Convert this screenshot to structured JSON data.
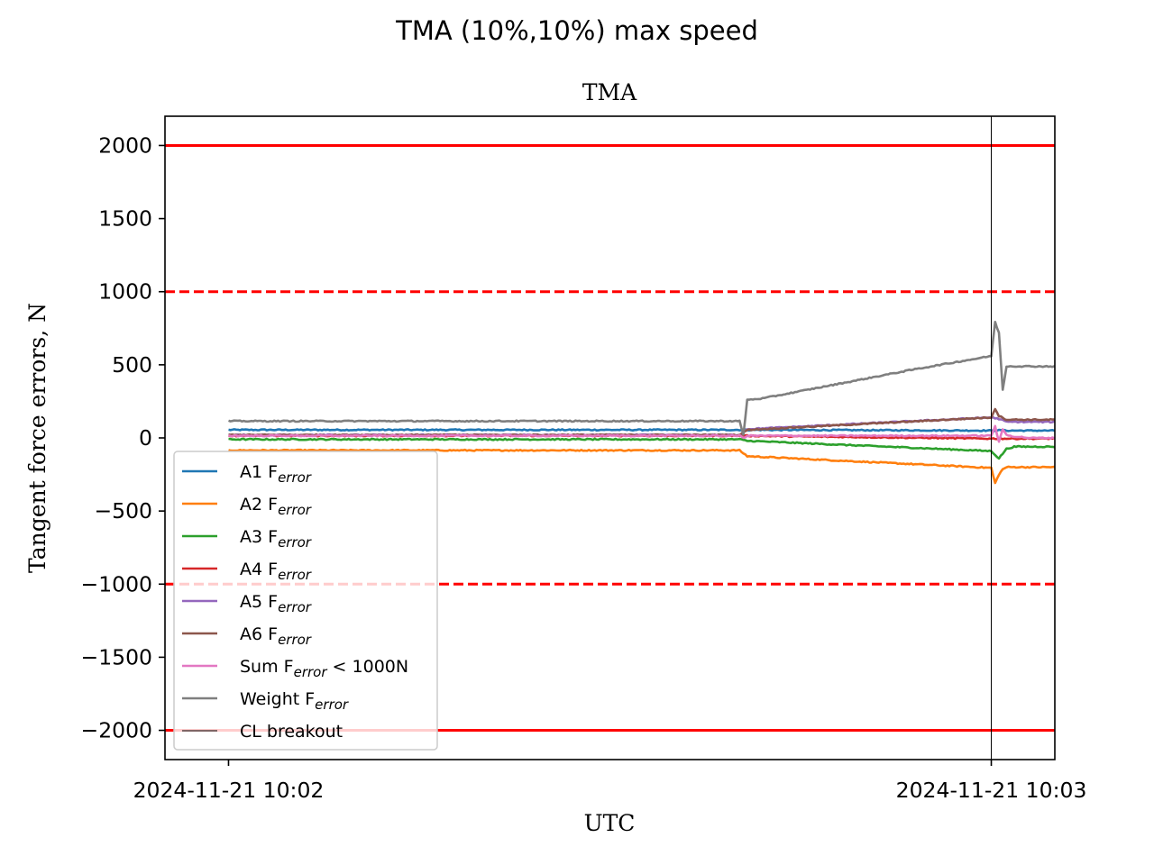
{
  "figure": {
    "suptitle": "TMA (10%,10%) max speed"
  },
  "chart_data": {
    "type": "line",
    "title": "TMA",
    "xlabel": "UTC",
    "ylabel": "Tangent force errors, N",
    "ylim": [
      -2200,
      2200
    ],
    "xlim": [
      -0.0833,
      1.0833
    ],
    "x_unit": "minutes since 2024-11-21 10:02",
    "yticks": [
      2000,
      1500,
      1000,
      500,
      0,
      -500,
      -1000,
      -1500,
      -2000
    ],
    "ytick_labels": [
      "2000",
      "1500",
      "1000",
      "500",
      "0",
      "−500",
      "−1000",
      "−1500",
      "−2000"
    ],
    "xticks": [
      0.0,
      1.0,
      1.3867
    ],
    "xtick_labels": [
      "2024-11-21 10:02",
      "2024-11-21 10:03",
      "2024-11-21 10:03"
    ],
    "grid": false,
    "legend_position": "lower-left",
    "colors": {
      "A1": "#1f77b4",
      "A2": "#ff7f0e",
      "A3": "#2ca02c",
      "A4": "#d62728",
      "A5": "#9467bd",
      "A6": "#8c564b",
      "Sum": "#e377c2",
      "Weight": "#7f7f7f",
      "limit": "#ff0000",
      "breakout": "#000000"
    },
    "limits": [
      {
        "y": 2000,
        "style": "solid"
      },
      {
        "y": -2000,
        "style": "solid"
      },
      {
        "y": 1000,
        "style": "dashed"
      },
      {
        "y": -1000,
        "style": "dashed"
      }
    ],
    "breakout_x": 1.0,
    "series": [
      {
        "name": "A1",
        "color": "#1f77b4",
        "points": [
          [
            0,
            55
          ],
          [
            0.67,
            55
          ],
          [
            0.9,
            52
          ],
          [
            1.0,
            50
          ],
          [
            1.01,
            52
          ],
          [
            1.02,
            50
          ],
          [
            1.39,
            50
          ]
        ]
      },
      {
        "name": "A2",
        "color": "#ff7f0e",
        "points": [
          [
            0,
            -85
          ],
          [
            0.67,
            -85
          ],
          [
            0.68,
            -125
          ],
          [
            1.0,
            -205
          ],
          [
            1.005,
            -310
          ],
          [
            1.01,
            -250
          ],
          [
            1.015,
            -215
          ],
          [
            1.02,
            -200
          ],
          [
            1.39,
            -200
          ]
        ]
      },
      {
        "name": "A3",
        "color": "#2ca02c",
        "points": [
          [
            0,
            -10
          ],
          [
            0.67,
            -10
          ],
          [
            0.68,
            -20
          ],
          [
            1.0,
            -90
          ],
          [
            1.01,
            -140
          ],
          [
            1.02,
            -75
          ],
          [
            1.03,
            -60
          ],
          [
            1.39,
            -58
          ]
        ]
      },
      {
        "name": "A4",
        "color": "#d62728",
        "points": [
          [
            0,
            15
          ],
          [
            0.67,
            15
          ],
          [
            1.0,
            -5
          ],
          [
            1.02,
            -5
          ],
          [
            1.39,
            -5
          ]
        ]
      },
      {
        "name": "A5",
        "color": "#9467bd",
        "points": [
          [
            0,
            20
          ],
          [
            0.67,
            20
          ],
          [
            0.68,
            60
          ],
          [
            1.0,
            140
          ],
          [
            1.01,
            130
          ],
          [
            1.02,
            110
          ],
          [
            1.39,
            105
          ]
        ]
      },
      {
        "name": "A6",
        "color": "#8c564b",
        "points": [
          [
            0,
            20
          ],
          [
            0.67,
            20
          ],
          [
            0.68,
            55
          ],
          [
            1.0,
            140
          ],
          [
            1.005,
            200
          ],
          [
            1.01,
            150
          ],
          [
            1.02,
            125
          ],
          [
            1.39,
            120
          ]
        ]
      },
      {
        "name": "Sum",
        "color": "#e377c2",
        "points": [
          [
            0,
            15
          ],
          [
            0.67,
            15
          ],
          [
            0.675,
            0
          ],
          [
            0.68,
            15
          ],
          [
            1.0,
            15
          ],
          [
            1.005,
            80
          ],
          [
            1.01,
            -30
          ],
          [
            1.015,
            60
          ],
          [
            1.02,
            20
          ],
          [
            1.03,
            10
          ],
          [
            1.05,
            0
          ],
          [
            1.39,
            -5
          ]
        ]
      },
      {
        "name": "Weight",
        "color": "#7f7f7f",
        "points": [
          [
            0,
            115
          ],
          [
            0.67,
            115
          ],
          [
            0.675,
            20
          ],
          [
            0.68,
            260
          ],
          [
            0.7,
            270
          ],
          [
            0.8,
            370
          ],
          [
            0.9,
            470
          ],
          [
            1.0,
            560
          ],
          [
            1.005,
            790
          ],
          [
            1.01,
            720
          ],
          [
            1.015,
            330
          ],
          [
            1.02,
            490
          ],
          [
            1.39,
            485
          ]
        ]
      }
    ],
    "legend": {
      "entries": [
        {
          "key": "A1",
          "label": "A1 F",
          "sub": "error",
          "suffix": ""
        },
        {
          "key": "A2",
          "label": "A2 F",
          "sub": "error",
          "suffix": ""
        },
        {
          "key": "A3",
          "label": "A3 F",
          "sub": "error",
          "suffix": ""
        },
        {
          "key": "A4",
          "label": "A4 F",
          "sub": "error",
          "suffix": ""
        },
        {
          "key": "A5",
          "label": "A5 F",
          "sub": "error",
          "suffix": ""
        },
        {
          "key": "A6",
          "label": "A6 F",
          "sub": "error",
          "suffix": ""
        },
        {
          "key": "Sum",
          "label": "Sum F",
          "sub": "error",
          "suffix": " < 1000N"
        },
        {
          "key": "Weight",
          "label": "Weight F",
          "sub": "error",
          "suffix": ""
        },
        {
          "key": "breakout",
          "label": "CL breakout",
          "sub": "",
          "suffix": ""
        }
      ]
    }
  }
}
